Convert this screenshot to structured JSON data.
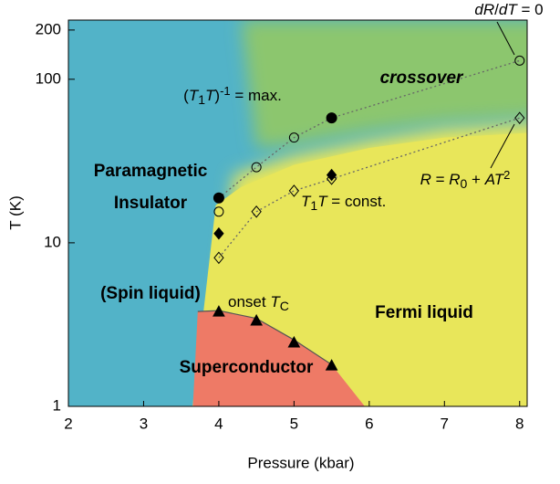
{
  "chart_data": {
    "type": "phase-diagram",
    "xlabel": "Pressure (kbar)",
    "ylabel": "T (K)",
    "xlim": [
      2,
      8.1
    ],
    "ylim": [
      1,
      230
    ],
    "yscale": "log",
    "xticks": [
      2,
      3,
      4,
      5,
      6,
      7,
      8
    ],
    "yticks": [
      1,
      10,
      100,
      200
    ],
    "region_colors": {
      "insulator": "#52b3c8",
      "metal": "#e8e65a",
      "crossover": "#8cc66e",
      "superconductor": "#ee7a66"
    },
    "series": [
      {
        "marker": "none",
        "line": "dotted",
        "color": "#666666",
        "x": [
          4,
          4.5,
          5,
          5.5,
          8
        ],
        "values": [
          18.8,
          29,
          44,
          58,
          130
        ]
      },
      {
        "marker": "circle",
        "fill": "open",
        "color": "#000000",
        "x": [
          4,
          4.5,
          5,
          8
        ],
        "values": [
          15.5,
          29,
          44,
          130
        ]
      },
      {
        "marker": "circle",
        "fill": "filled",
        "color": "#000000",
        "x": [
          4,
          5.5
        ],
        "values": [
          18.8,
          58
        ]
      },
      {
        "marker": "none",
        "line": "dotted",
        "color": "#666666",
        "x": [
          4,
          4.5,
          5,
          5.5,
          8
        ],
        "values": [
          8.1,
          15.5,
          20.8,
          24.6,
          58
        ]
      },
      {
        "marker": "diamond",
        "fill": "open",
        "color": "#000000",
        "x": [
          4,
          4.5,
          5,
          5.5,
          8
        ],
        "values": [
          8.1,
          15.5,
          20.8,
          24.6,
          58
        ]
      },
      {
        "marker": "diamond",
        "fill": "filled",
        "color": "#000000",
        "x": [
          4,
          5.5
        ],
        "values": [
          11.4,
          26
        ]
      },
      {
        "marker": "triangle",
        "fill": "filled",
        "color": "#000000",
        "x": [
          4,
          4.5,
          5,
          5.5
        ],
        "values": [
          3.8,
          3.35,
          2.46,
          1.78
        ]
      }
    ],
    "annotations": [
      {
        "parts": [
          [
            "dR",
            "i"
          ],
          [
            "/",
            "n"
          ],
          [
            "dT",
            "i"
          ],
          [
            " = 0",
            "n"
          ]
        ]
      },
      {
        "parts": [
          [
            "crossover",
            "bi"
          ]
        ]
      },
      {
        "parts": [
          [
            "(",
            "n"
          ],
          [
            "T",
            "i"
          ],
          [
            "1",
            "sub"
          ],
          [
            "T",
            "i"
          ],
          [
            ")",
            "n"
          ],
          [
            "-1",
            "sup"
          ],
          [
            " = max.",
            "n"
          ]
        ]
      },
      {
        "parts": [
          [
            "Paramagnetic",
            "b"
          ]
        ]
      },
      {
        "parts": [
          [
            "Insulator",
            "b"
          ]
        ]
      },
      {
        "parts": [
          [
            "T",
            "i"
          ],
          [
            "1",
            "sub"
          ],
          [
            "T",
            "i"
          ],
          [
            " = const.",
            "n"
          ]
        ]
      },
      {
        "parts": [
          [
            "R",
            "i"
          ],
          [
            " = ",
            "n"
          ],
          [
            "R",
            "i"
          ],
          [
            "0",
            "sub"
          ],
          [
            " + ",
            "n"
          ],
          [
            "AT",
            "i"
          ],
          [
            "2",
            "sup"
          ]
        ]
      },
      {
        "parts": [
          [
            "(Spin liquid)",
            "b"
          ]
        ]
      },
      {
        "parts": [
          [
            "onset ",
            "n"
          ],
          [
            "T",
            "i"
          ],
          [
            "C",
            "sub"
          ]
        ]
      },
      {
        "parts": [
          [
            "Fermi liquid",
            "b"
          ]
        ]
      },
      {
        "parts": [
          [
            "Superconductor",
            "b"
          ]
        ]
      }
    ]
  }
}
